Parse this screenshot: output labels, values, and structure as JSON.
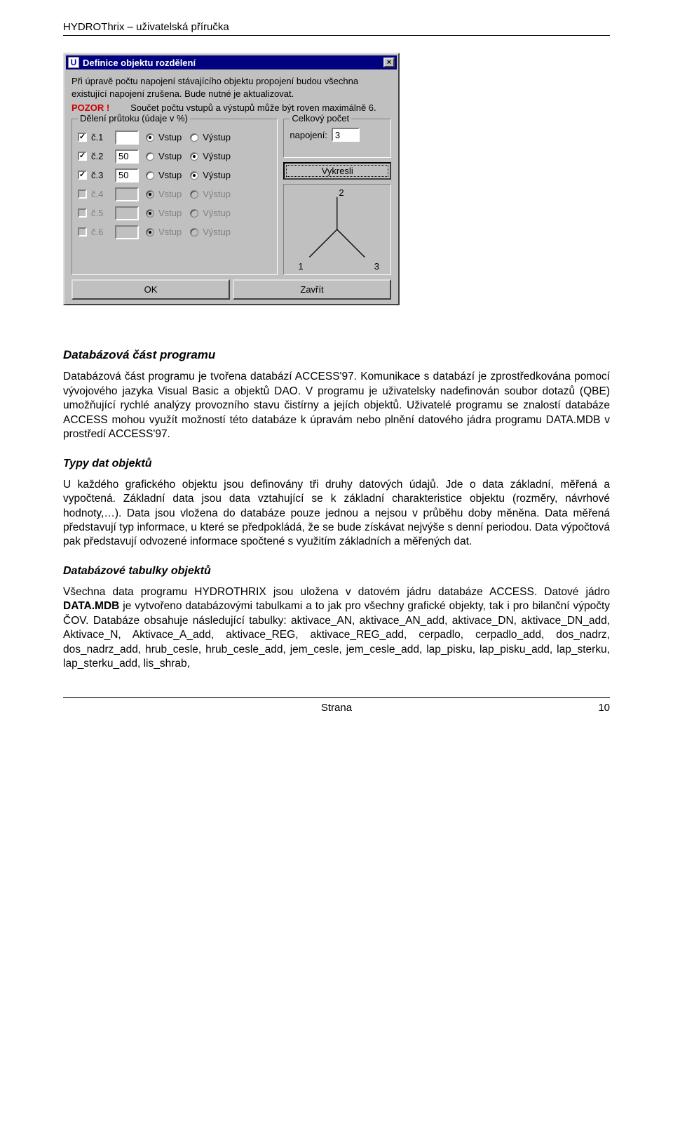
{
  "doc_header": "HYDROThrix – uživatelská příručka",
  "dialog": {
    "title": "Definice objektu rozdělení",
    "icon_glyph": "U",
    "close_glyph": "×",
    "info_line1": "Při úpravě počtu napojení stávajícího objektu propojení budou všechna existující napojení zrušena. Bude nutné je aktualizovat.",
    "pozor": "POZOR !",
    "pozor_rest": "Součet počtu vstupů a výstupů  může být roven maximálně 6.",
    "group_left_legend": "Dělení průtoku (údaje v %)",
    "group_right_legend": "Celkový počet",
    "right_label_napojeni": "napojení:",
    "count_value": "3",
    "vykresli": "Vykresli",
    "ok": "OK",
    "zavrit": "Zavřít",
    "vstup": "Vstup",
    "vystup": "Výstup",
    "rows": [
      {
        "label": "č.1",
        "checked": true,
        "enabled": true,
        "value": "",
        "sel": "vstup"
      },
      {
        "label": "č.2",
        "checked": true,
        "enabled": true,
        "value": "50",
        "sel": "vystup"
      },
      {
        "label": "č.3",
        "checked": true,
        "enabled": true,
        "value": "50",
        "sel": "vystup"
      },
      {
        "label": "č.4",
        "checked": false,
        "enabled": false,
        "value": "",
        "sel": "vstup"
      },
      {
        "label": "č.5",
        "checked": false,
        "enabled": false,
        "value": "",
        "sel": "vstup"
      },
      {
        "label": "č.6",
        "checked": false,
        "enabled": false,
        "value": "",
        "sel": "vstup"
      }
    ],
    "diagram": {
      "n1": "1",
      "n2": "2",
      "n3": "3"
    }
  },
  "sec1_title": "Databázová část programu",
  "para1": "Databázová část programu je tvořena databází ACCESS'97. Komunikace s databází je zprostředkována pomocí vývojového jazyka Visual Basic a objektů DAO. V programu je uživatelsky nadefinován soubor dotazů (QBE) umožňující rychlé analýzy provozního stavu čistírny a jejích objektů. Uživatelé programu se znalostí databáze ACCESS mohou využít možností této databáze k úpravám nebo plnění datového jádra programu DATA.MDB v prostředí ACCESS'97.",
  "sec2_title": "Typy dat objektů",
  "para2": "U každého grafického objektu jsou definovány tři druhy datových údajů. Jde o data základní, měřená a vypočtená. Základní data jsou data vztahující se k základní charakteristice objektu (rozměry, návrhové hodnoty,…). Data jsou vložena do databáze pouze jednou a nejsou v průběhu doby měněna. Data měřená představují typ informace, u které se předpokládá, že se bude získávat nejvýše s denní periodou. Data výpočtová pak představují odvozené informace spočtené s využitím základních a měřených dat.",
  "sec3_title": "Databázové tabulky objektů",
  "para3_a": "Všechna data programu HYDROTHRIX jsou uložena v datovém jádru databáze ACCESS. Datové jádro ",
  "para3_b": "DATA.MDB",
  "para3_c": " je vytvořeno databázovými tabulkami a to jak pro všechny grafické objekty, tak i pro bilanční výpočty ČOV. Databáze obsahuje následující tabulky: aktivace_AN, aktivace_AN_add, aktivace_DN, aktivace_DN_add, Aktivace_N, Aktivace_A_add, aktivace_REG, aktivace_REG_add, cerpadlo, cerpadlo_add, dos_nadrz, dos_nadrz_add, hrub_cesle, hrub_cesle_add, jem_cesle, jem_cesle_add, lap_pisku, lap_pisku_add, lap_sterku, lap_sterku_add, lis_shrab,",
  "footer_label": "Strana",
  "footer_page": "10"
}
